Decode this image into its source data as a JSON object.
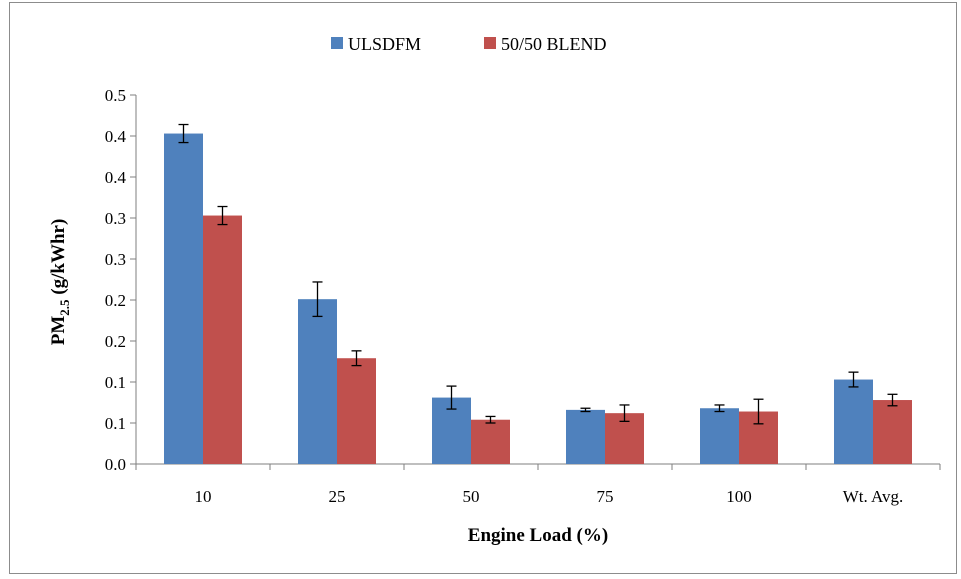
{
  "chart_data": {
    "type": "bar",
    "categories": [
      "10",
      "25",
      "50",
      "75",
      "100",
      "Wt. Avg."
    ],
    "series": [
      {
        "name": "ULSDFM",
        "color": "#4f81bd",
        "values": [
          0.403,
          0.201,
          0.081,
          0.066,
          0.068,
          0.103
        ],
        "errors": [
          0.011,
          0.021,
          0.014,
          0.002,
          0.004,
          0.009
        ]
      },
      {
        "name": "50/50 BLEND",
        "color": "#c0504d",
        "values": [
          0.303,
          0.129,
          0.054,
          0.062,
          0.064,
          0.078
        ],
        "errors": [
          0.011,
          0.009,
          0.004,
          0.01,
          0.015,
          0.007
        ]
      }
    ],
    "xlabel": "Engine Load (%)",
    "ylabel_main": "PM",
    "ylabel_sub": "2.5",
    "ylabel_unit": " (g/kWhr)",
    "ylim": [
      0,
      0.45
    ],
    "yticks": [
      0,
      0.05,
      0.1,
      0.15,
      0.2,
      0.25,
      0.3,
      0.35,
      0.4,
      0.45
    ],
    "ytick_labels": [
      "0.0",
      "0.1",
      "0.1",
      "0.2",
      "0.2",
      "0.3",
      "0.3",
      "0.4",
      "0.4",
      "0.5"
    ],
    "grid": false,
    "legend_position": "top-center"
  }
}
